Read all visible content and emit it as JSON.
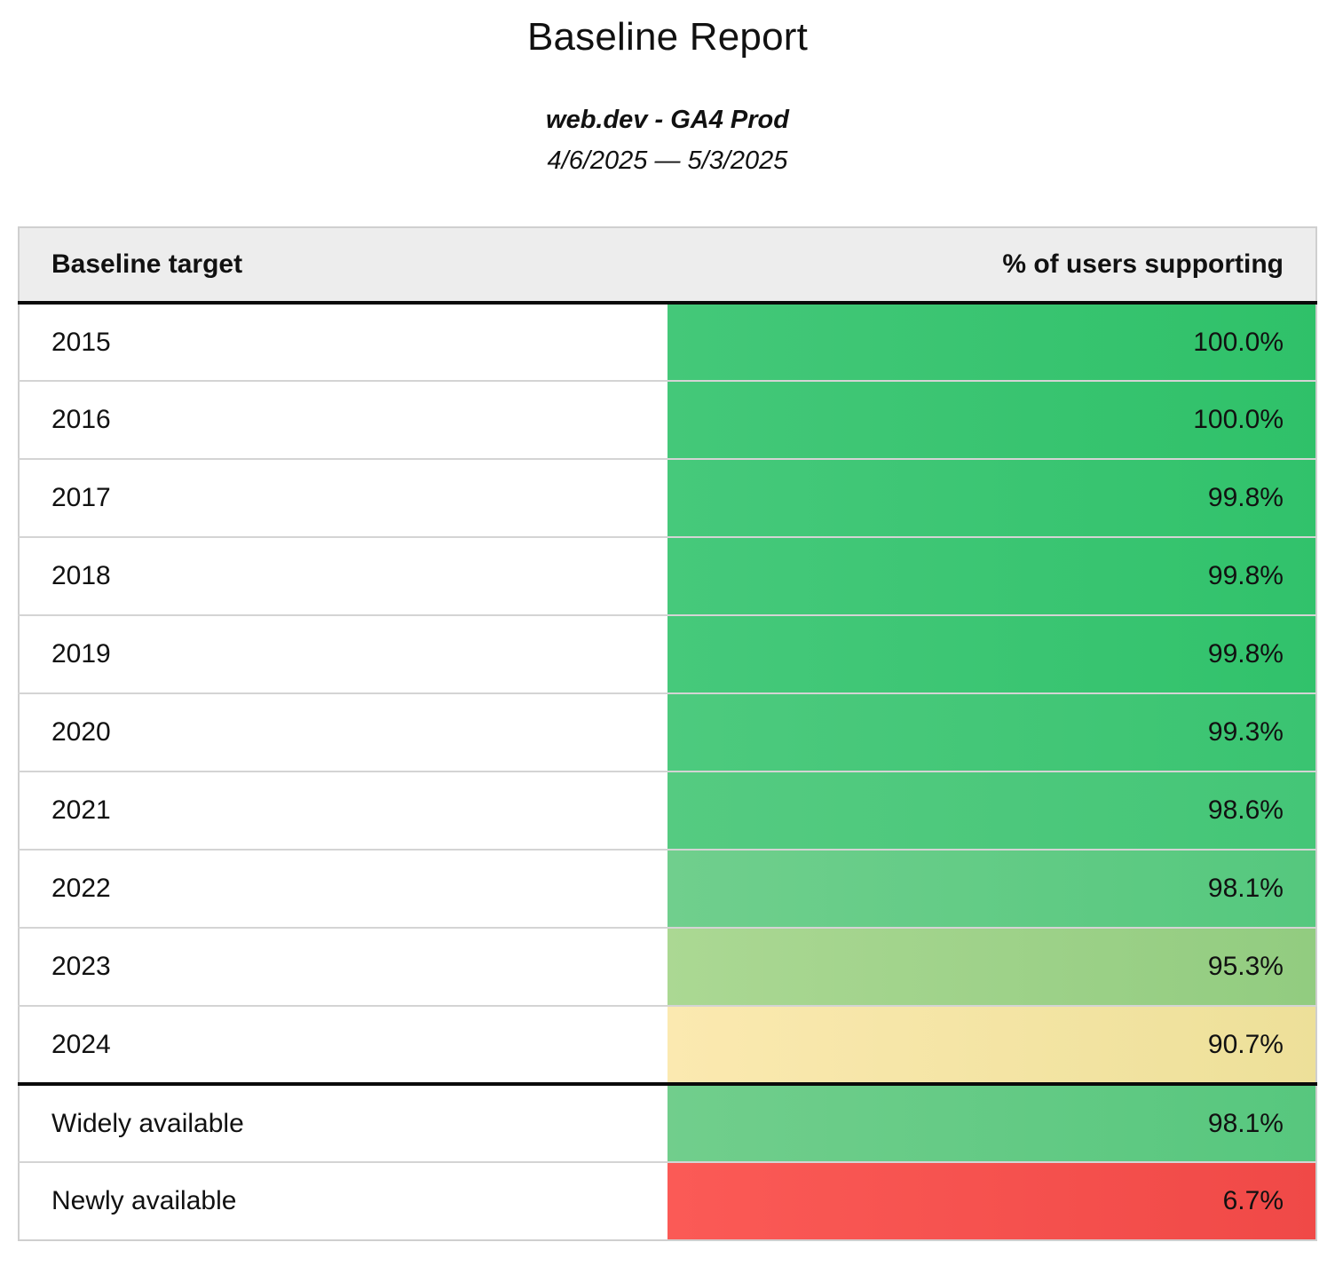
{
  "report": {
    "title": "Baseline Report",
    "subtitle": "web.dev - GA4 Prod",
    "date_range": "4/6/2025 — 5/3/2025"
  },
  "table": {
    "columns": {
      "target_label": "Baseline target",
      "value_label": "% of users supporting"
    },
    "rows": [
      {
        "target": "2015",
        "value": "100.0%",
        "color_left": "#44c879",
        "color_right": "#2fc169",
        "divider_before": false
      },
      {
        "target": "2016",
        "value": "100.0%",
        "color_left": "#44c879",
        "color_right": "#2fc169",
        "divider_before": false
      },
      {
        "target": "2017",
        "value": "99.8%",
        "color_left": "#46c97b",
        "color_right": "#31c26b",
        "divider_before": false
      },
      {
        "target": "2018",
        "value": "99.8%",
        "color_left": "#46c97b",
        "color_right": "#31c26b",
        "divider_before": false
      },
      {
        "target": "2019",
        "value": "99.8%",
        "color_left": "#46c97b",
        "color_right": "#31c26b",
        "divider_before": false
      },
      {
        "target": "2020",
        "value": "99.3%",
        "color_left": "#4dca7e",
        "color_right": "#3ac471",
        "divider_before": false
      },
      {
        "target": "2021",
        "value": "98.6%",
        "color_left": "#55cb81",
        "color_right": "#44c677",
        "divider_before": false
      },
      {
        "target": "2022",
        "value": "98.1%",
        "color_left": "#70cf8d",
        "color_right": "#55c87e",
        "divider_before": false
      },
      {
        "target": "2023",
        "value": "95.3%",
        "color_left": "#abd893",
        "color_right": "#92cc80",
        "divider_before": false
      },
      {
        "target": "2024",
        "value": "90.7%",
        "color_left": "#fbe9b0",
        "color_right": "#ede099",
        "divider_before": false
      },
      {
        "target": "Widely available",
        "value": "98.1%",
        "color_left": "#71ce8c",
        "color_right": "#57c77e",
        "divider_before": true
      },
      {
        "target": "Newly available",
        "value": "6.7%",
        "color_left": "#fb5a56",
        "color_right": "#f04947",
        "divider_before": false
      }
    ]
  },
  "colors": {
    "header_background": "#ededed",
    "heavy_border": "#0a0a0a",
    "light_border": "#d4d4d4",
    "text": "#111111"
  }
}
